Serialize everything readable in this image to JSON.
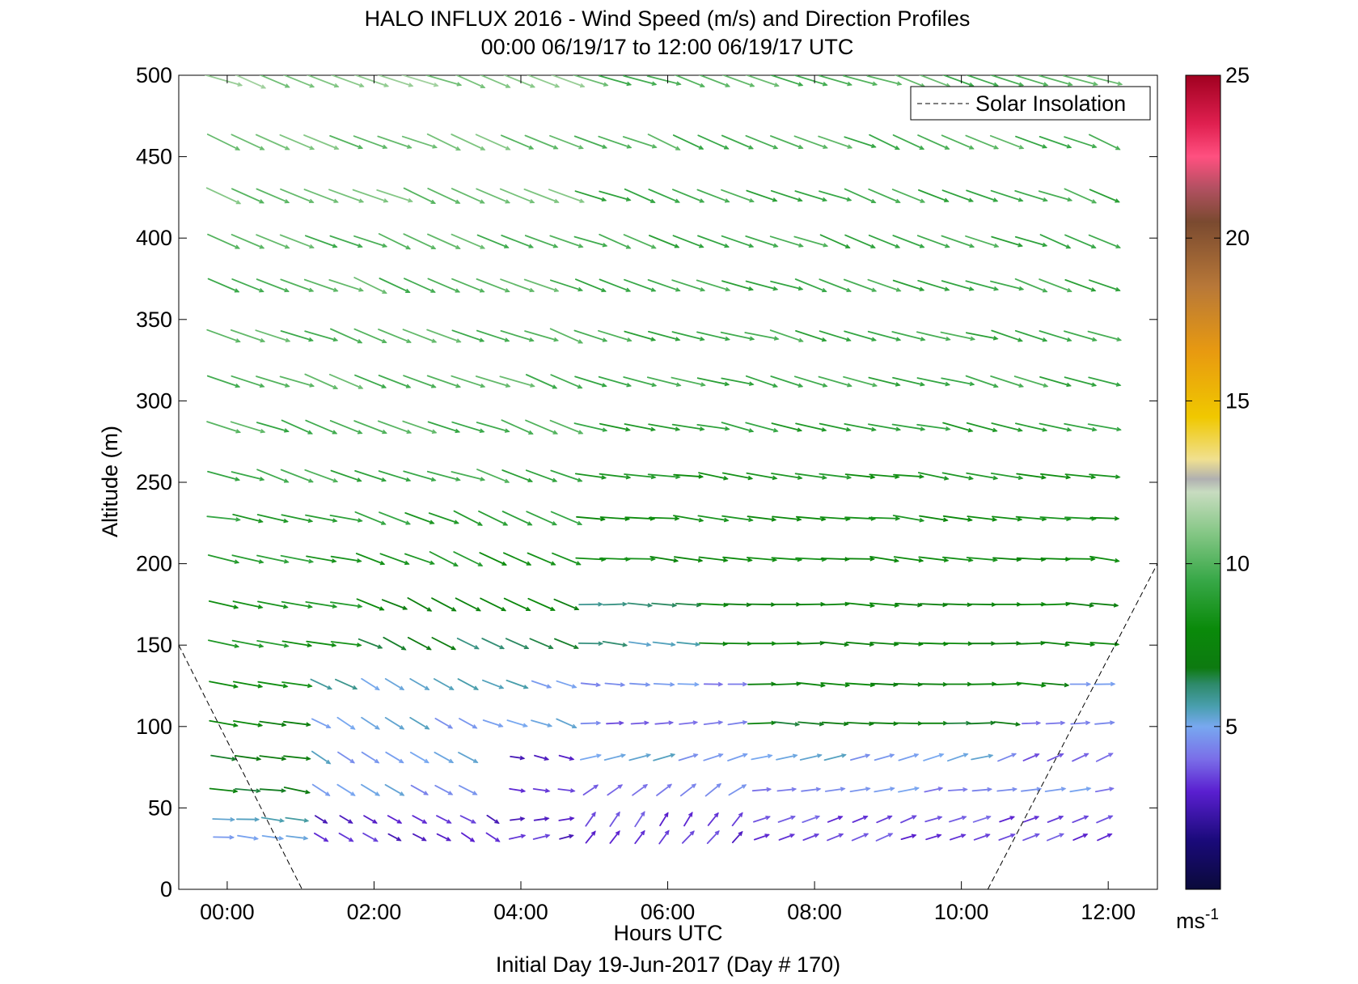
{
  "chart_data": {
    "type": "quiver",
    "title": "HALO INFLUX 2016 - Wind Speed (m/s) and Direction Profiles",
    "subtitle": "00:00 06/19/17 to 12:00 06/19/17  UTC",
    "xlabel": "Hours UTC",
    "xlabel2": "Initial Day 19-Jun-2017 (Day # 170)",
    "ylabel": "Altitude (m)",
    "xlim": [
      -0.66,
      12.67
    ],
    "ylim": [
      0,
      500
    ],
    "xticks": [
      0,
      2,
      4,
      6,
      8,
      10,
      12
    ],
    "xtick_labels": [
      "00:00",
      "02:00",
      "04:00",
      "06:00",
      "08:00",
      "10:00",
      "12:00"
    ],
    "yticks": [
      0,
      50,
      100,
      150,
      200,
      250,
      300,
      350,
      400,
      450,
      500
    ],
    "ytick_labels": [
      "0",
      "50",
      "100",
      "150",
      "200",
      "250",
      "300",
      "350",
      "400",
      "450",
      "500"
    ],
    "legend": {
      "label": "Solar Insolation",
      "location": "top-right",
      "style": "dashed"
    },
    "colorbar": {
      "range": [
        0,
        25
      ],
      "ticks": [
        5,
        10,
        15,
        20,
        25
      ],
      "tick_labels": [
        "5",
        "10",
        "15",
        "20",
        "25"
      ],
      "unit_label": "ms",
      "unit_exponent": "-1",
      "color_stops": [
        {
          "value": 0,
          "color": "#0a0a3a"
        },
        {
          "value": 1.5,
          "color": "#1a0a7a"
        },
        {
          "value": 3,
          "color": "#5a1fd0"
        },
        {
          "value": 4,
          "color": "#7a6ee8"
        },
        {
          "value": 5,
          "color": "#78a8f0"
        },
        {
          "value": 5.6,
          "color": "#4a9fb0"
        },
        {
          "value": 6.3,
          "color": "#2e8a6a"
        },
        {
          "value": 6.8,
          "color": "#0d7a10"
        },
        {
          "value": 8,
          "color": "#0a8a0a"
        },
        {
          "value": 9.5,
          "color": "#38a848"
        },
        {
          "value": 11,
          "color": "#88c888"
        },
        {
          "value": 12.2,
          "color": "#c8dcc0"
        },
        {
          "value": 12.6,
          "color": "#b0b0b0"
        },
        {
          "value": 13.2,
          "color": "#f0e090"
        },
        {
          "value": 14.5,
          "color": "#f0c800"
        },
        {
          "value": 16.5,
          "color": "#e89a10"
        },
        {
          "value": 18.5,
          "color": "#b87838"
        },
        {
          "value": 20.5,
          "color": "#7a4a30"
        },
        {
          "value": 21.5,
          "color": "#b05060"
        },
        {
          "value": 22.5,
          "color": "#ff5080"
        },
        {
          "value": 23.5,
          "color": "#e02050"
        },
        {
          "value": 25,
          "color": "#a00020"
        }
      ]
    },
    "solar_insolation": [
      {
        "x": [
          -0.66,
          1.02
        ],
        "y": [
          150,
          0
        ]
      },
      {
        "x": [
          10.36,
          12.67
        ],
        "y": [
          0,
          200
        ]
      }
    ],
    "altitudes": [
      32,
      43,
      61,
      81,
      102,
      126,
      151,
      175,
      203,
      228,
      254,
      284,
      312,
      340,
      371,
      398,
      426,
      459,
      497
    ],
    "times_hours": [
      -0.25,
      0.08,
      0.42,
      0.75,
      1.08,
      1.42,
      1.75,
      2.08,
      2.42,
      2.75,
      3.08,
      3.42,
      3.75,
      4.08,
      4.42,
      4.75,
      5.08,
      5.42,
      5.75,
      6.08,
      6.42,
      6.75,
      7.08,
      7.42,
      7.75,
      8.08,
      8.42,
      8.75,
      9.08,
      9.42,
      9.75,
      10.08,
      10.42,
      10.75,
      11.08,
      11.42,
      11.75
    ],
    "levels": [
      {
        "altitude": 32,
        "segments": [
          {
            "from": -0.25,
            "to": 0.75,
            "speed": 5.2,
            "dir": 275
          },
          {
            "from": 1.0,
            "to": 3.6,
            "speed": 3.0,
            "dir": 300
          },
          {
            "from": 3.7,
            "to": 4.7,
            "speed": 3.0,
            "dir": 255
          },
          {
            "from": 4.75,
            "to": 6.9,
            "speed": 3.2,
            "dir": 220
          },
          {
            "from": 6.9,
            "to": 11.8,
            "speed": 3.4,
            "dir": 250
          }
        ]
      },
      {
        "altitude": 43,
        "segments": [
          {
            "from": -0.25,
            "to": 0.75,
            "speed": 5.3,
            "dir": 275
          },
          {
            "from": 1.0,
            "to": 3.6,
            "speed": 3.0,
            "dir": 300
          },
          {
            "from": 3.7,
            "to": 4.7,
            "speed": 2.9,
            "dir": 260
          },
          {
            "from": 4.75,
            "to": 6.9,
            "speed": 3.4,
            "dir": 215
          },
          {
            "from": 6.9,
            "to": 11.8,
            "speed": 3.5,
            "dir": 250
          }
        ]
      },
      {
        "altitude": 61,
        "segments": [
          {
            "from": -0.25,
            "to": 0.75,
            "speed": 7.0,
            "dir": 278
          },
          {
            "from": 1.0,
            "to": 3.4,
            "speed": 4.8,
            "dir": 300
          },
          {
            "from": 3.6,
            "to": 4.7,
            "speed": 3.0,
            "dir": 275
          },
          {
            "from": 4.75,
            "to": 6.9,
            "speed": 4.2,
            "dir": 235
          },
          {
            "from": 6.9,
            "to": 11.8,
            "speed": 4.5,
            "dir": 262
          }
        ]
      },
      {
        "altitude": 81,
        "segments": [
          {
            "from": -0.25,
            "to": 0.75,
            "speed": 6.8,
            "dir": 280
          },
          {
            "from": 1.0,
            "to": 3.3,
            "speed": 5.0,
            "dir": 300
          },
          {
            "from": 3.5,
            "to": 4.7,
            "speed": 3.0,
            "dir": 282
          },
          {
            "from": 4.75,
            "to": 10.2,
            "speed": 5.0,
            "dir": 255
          },
          {
            "from": 10.3,
            "to": 11.8,
            "speed": 4.0,
            "dir": 245
          }
        ]
      },
      {
        "altitude": 102,
        "segments": [
          {
            "from": -0.25,
            "to": 0.75,
            "speed": 7.5,
            "dir": 280
          },
          {
            "from": 1.0,
            "to": 3.3,
            "speed": 5.0,
            "dir": 300
          },
          {
            "from": 3.4,
            "to": 4.7,
            "speed": 5.0,
            "dir": 290
          },
          {
            "from": 4.75,
            "to": 6.9,
            "speed": 4.0,
            "dir": 265
          },
          {
            "from": 6.9,
            "to": 10.5,
            "speed": 7.0,
            "dir": 272
          },
          {
            "from": 10.6,
            "to": 11.8,
            "speed": 4.0,
            "dir": 265
          }
        ]
      },
      {
        "altitude": 126,
        "segments": [
          {
            "from": -0.25,
            "to": 0.75,
            "speed": 8.2,
            "dir": 280
          },
          {
            "from": 1.0,
            "to": 3.3,
            "speed": 5.5,
            "dir": 298
          },
          {
            "from": 3.4,
            "to": 4.7,
            "speed": 5.2,
            "dir": 292
          },
          {
            "from": 4.75,
            "to": 6.9,
            "speed": 4.5,
            "dir": 272
          },
          {
            "from": 6.9,
            "to": 11.4,
            "speed": 7.5,
            "dir": 272
          },
          {
            "from": 11.4,
            "to": 11.8,
            "speed": 5.0,
            "dir": 268
          }
        ]
      },
      {
        "altitude": 151,
        "segments": [
          {
            "from": -0.25,
            "to": 1.5,
            "speed": 8.5,
            "dir": 280
          },
          {
            "from": 1.5,
            "to": 4.7,
            "speed": 6.5,
            "dir": 295
          },
          {
            "from": 4.75,
            "to": 6.4,
            "speed": 5.8,
            "dir": 275
          },
          {
            "from": 6.4,
            "to": 11.8,
            "speed": 7.5,
            "dir": 272
          }
        ]
      },
      {
        "altitude": 175,
        "segments": [
          {
            "from": -0.25,
            "to": 1.5,
            "speed": 8.6,
            "dir": 280
          },
          {
            "from": 1.5,
            "to": 4.7,
            "speed": 7.5,
            "dir": 295
          },
          {
            "from": 4.75,
            "to": 6.4,
            "speed": 6.2,
            "dir": 272
          },
          {
            "from": 6.4,
            "to": 11.8,
            "speed": 7.5,
            "dir": 272
          }
        ]
      },
      {
        "altitude": 203,
        "segments": [
          {
            "from": -0.25,
            "to": 1.5,
            "speed": 8.8,
            "dir": 280
          },
          {
            "from": 1.5,
            "to": 4.7,
            "speed": 8.5,
            "dir": 293
          },
          {
            "from": 4.75,
            "to": 11.8,
            "speed": 8.0,
            "dir": 275
          }
        ]
      },
      {
        "altitude": 228,
        "segments": [
          {
            "from": -0.25,
            "to": 1.5,
            "speed": 9.0,
            "dir": 280
          },
          {
            "from": 1.5,
            "to": 4.7,
            "speed": 9.0,
            "dir": 293
          },
          {
            "from": 4.75,
            "to": 11.8,
            "speed": 8.2,
            "dir": 276
          }
        ]
      },
      {
        "altitude": 254,
        "segments": [
          {
            "from": -0.25,
            "to": 4.7,
            "speed": 9.5,
            "dir": 288
          },
          {
            "from": 4.75,
            "to": 11.8,
            "speed": 8.5,
            "dir": 278
          }
        ]
      },
      {
        "altitude": 284,
        "segments": [
          {
            "from": -0.25,
            "to": 4.7,
            "speed": 9.8,
            "dir": 290
          },
          {
            "from": 4.75,
            "to": 11.8,
            "speed": 9.0,
            "dir": 282
          }
        ]
      },
      {
        "altitude": 312,
        "segments": [
          {
            "from": -0.25,
            "to": 4.7,
            "speed": 10.0,
            "dir": 290
          },
          {
            "from": 4.75,
            "to": 11.8,
            "speed": 9.5,
            "dir": 285
          }
        ]
      },
      {
        "altitude": 340,
        "segments": [
          {
            "from": -0.25,
            "to": 4.7,
            "speed": 10.0,
            "dir": 290
          },
          {
            "from": 4.75,
            "to": 11.8,
            "speed": 9.5,
            "dir": 285
          }
        ]
      },
      {
        "altitude": 371,
        "segments": [
          {
            "from": -0.25,
            "to": 4.7,
            "speed": 10.0,
            "dir": 292
          },
          {
            "from": 4.75,
            "to": 11.8,
            "speed": 9.5,
            "dir": 288
          }
        ]
      },
      {
        "altitude": 398,
        "segments": [
          {
            "from": -0.25,
            "to": 4.7,
            "speed": 10.0,
            "dir": 292
          },
          {
            "from": 4.75,
            "to": 11.8,
            "speed": 9.5,
            "dir": 290
          }
        ]
      },
      {
        "altitude": 426,
        "segments": [
          {
            "from": -0.25,
            "to": 4.7,
            "speed": 10.5,
            "dir": 292
          },
          {
            "from": 4.75,
            "to": 11.8,
            "speed": 9.5,
            "dir": 290
          }
        ]
      },
      {
        "altitude": 459,
        "segments": [
          {
            "from": -0.25,
            "to": 4.7,
            "speed": 10.5,
            "dir": 292
          },
          {
            "from": 4.75,
            "to": 11.8,
            "speed": 9.8,
            "dir": 292
          }
        ]
      },
      {
        "altitude": 497,
        "segments": [
          {
            "from": -0.25,
            "to": 4.7,
            "speed": 11.0,
            "dir": 290
          },
          {
            "from": 4.75,
            "to": 11.8,
            "speed": 10.0,
            "dir": 288
          }
        ]
      }
    ]
  }
}
